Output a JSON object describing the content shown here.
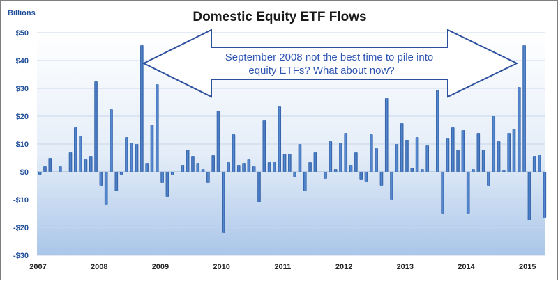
{
  "chart_data": {
    "type": "bar",
    "title": "Domestic Equity ETF Flows",
    "ylabel": "Billions",
    "xlabel": "",
    "ylim": [
      -30,
      50
    ],
    "yticks": [
      50,
      40,
      30,
      20,
      10,
      0,
      -10,
      -20,
      -30
    ],
    "ytick_labels": [
      "$50",
      "$40",
      "$30",
      "$20",
      "$10",
      "$0",
      "-$10",
      "-$20",
      "-$30"
    ],
    "xticks": [
      "2007",
      "2008",
      "2009",
      "2010",
      "2011",
      "2012",
      "2013",
      "2014",
      "2015"
    ],
    "x_start_year": 2007,
    "annotation": {
      "line1": "September 2008 not the best time to pile into",
      "line2": "equity ETFs?  What about now?"
    },
    "categories": [
      "Jan 2007",
      "Feb 2007",
      "Mar 2007",
      "Apr 2007",
      "May 2007",
      "Jun 2007",
      "Jul 2007",
      "Aug 2007",
      "Sep 2007",
      "Oct 2007",
      "Nov 2007",
      "Dec 2007",
      "Jan 2008",
      "Feb 2008",
      "Mar 2008",
      "Apr 2008",
      "May 2008",
      "Jun 2008",
      "Jul 2008",
      "Aug 2008",
      "Sep 2008",
      "Oct 2008",
      "Nov 2008",
      "Dec 2008",
      "Jan 2009",
      "Feb 2009",
      "Mar 2009",
      "Apr 2009",
      "May 2009",
      "Jun 2009",
      "Jul 2009",
      "Aug 2009",
      "Sep 2009",
      "Oct 2009",
      "Nov 2009",
      "Dec 2009",
      "Jan 2010",
      "Feb 2010",
      "Mar 2010",
      "Apr 2010",
      "May 2010",
      "Jun 2010",
      "Jul 2010",
      "Aug 2010",
      "Sep 2010",
      "Oct 2010",
      "Nov 2010",
      "Dec 2010",
      "Jan 2011",
      "Feb 2011",
      "Mar 2011",
      "Apr 2011",
      "May 2011",
      "Jun 2011",
      "Jul 2011",
      "Aug 2011",
      "Sep 2011",
      "Oct 2011",
      "Nov 2011",
      "Dec 2011",
      "Jan 2012",
      "Feb 2012",
      "Mar 2012",
      "Apr 2012",
      "May 2012",
      "Jun 2012",
      "Jul 2012",
      "Aug 2012",
      "Sep 2012",
      "Oct 2012",
      "Nov 2012",
      "Dec 2012",
      "Jan 2013",
      "Feb 2013",
      "Mar 2013",
      "Apr 2013",
      "May 2013",
      "Jun 2013",
      "Jul 2013",
      "Aug 2013",
      "Sep 2013",
      "Oct 2013",
      "Nov 2013",
      "Dec 2013",
      "Jan 2014",
      "Feb 2014",
      "Mar 2014",
      "Apr 2014",
      "May 2014",
      "Jun 2014",
      "Jul 2014",
      "Aug 2014",
      "Sep 2014",
      "Oct 2014",
      "Nov 2014",
      "Dec 2014",
      "Jan 2015",
      "Feb 2015",
      "Mar 2015",
      "Apr 2015"
    ],
    "values": [
      -1,
      2,
      5,
      0,
      2,
      0,
      7,
      16,
      13,
      4.5,
      5.5,
      32.5,
      -5,
      -12,
      22.5,
      -7,
      -1,
      12.5,
      10.5,
      10,
      45.5,
      3,
      17,
      31.5,
      -4,
      -9,
      -1,
      0,
      2.5,
      8,
      5.5,
      3,
      1,
      -4,
      6,
      22,
      -22,
      3.5,
      13.5,
      2.5,
      3,
      4.5,
      2,
      -11,
      18.5,
      3.5,
      3.5,
      23.5,
      6.5,
      6.5,
      -2,
      10,
      -7,
      3.5,
      7,
      0,
      -2.5,
      11,
      1,
      10.5,
      14,
      2.5,
      7,
      -3,
      -3.5,
      13.5,
      8.5,
      -5,
      26.5,
      -10,
      10,
      17.5,
      11.5,
      1.5,
      12.5,
      1,
      9.5,
      0,
      29.5,
      -15,
      12,
      16,
      8,
      15,
      -15,
      1,
      14,
      8,
      -5,
      20,
      11,
      0.5,
      14,
      15.5,
      30.5,
      45.5,
      -17.5,
      5.5,
      6,
      -16.5
    ]
  }
}
